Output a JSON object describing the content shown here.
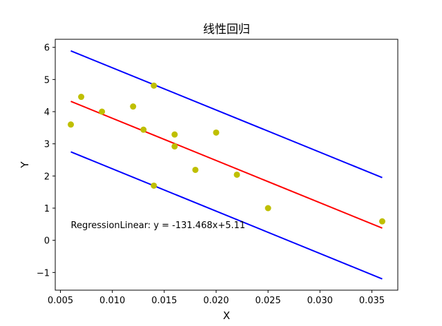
{
  "chart_data": {
    "type": "scatter",
    "title": "线性回归",
    "xlabel": "X",
    "ylabel": "Y",
    "xlim": [
      0.0045,
      0.0375
    ],
    "ylim": [
      -1.55,
      6.25
    ],
    "xticks": [
      0.005,
      0.01,
      0.015,
      0.02,
      0.025,
      0.03,
      0.035
    ],
    "xtick_labels": [
      "0.005",
      "0.010",
      "0.015",
      "0.020",
      "0.025",
      "0.030",
      "0.035"
    ],
    "yticks": [
      -1,
      0,
      1,
      2,
      3,
      4,
      5,
      6
    ],
    "ytick_labels": [
      "−1",
      "0",
      "1",
      "2",
      "3",
      "4",
      "5",
      "6"
    ],
    "grid": false,
    "points": {
      "color": "#bfbf00",
      "x": [
        0.006,
        0.007,
        0.009,
        0.012,
        0.013,
        0.014,
        0.014,
        0.016,
        0.016,
        0.018,
        0.02,
        0.022,
        0.025,
        0.036
      ],
      "y": [
        3.6,
        4.46,
        4.0,
        4.16,
        3.44,
        4.81,
        1.7,
        3.29,
        2.92,
        2.19,
        3.35,
        2.04,
        1.0,
        0.59
      ]
    },
    "lines": [
      {
        "color": "#ff0000",
        "x": [
          0.006,
          0.036
        ],
        "y": [
          4.32,
          0.38
        ]
      },
      {
        "color": "#0000ff",
        "x": [
          0.006,
          0.036
        ],
        "y": [
          5.89,
          1.95
        ]
      },
      {
        "color": "#0000ff",
        "x": [
          0.006,
          0.036
        ],
        "y": [
          2.75,
          -1.2
        ]
      }
    ],
    "annotation": {
      "text": "RegressionLinear: y = -131.468x+5.11",
      "x": 0.006,
      "y": 0.38
    }
  }
}
